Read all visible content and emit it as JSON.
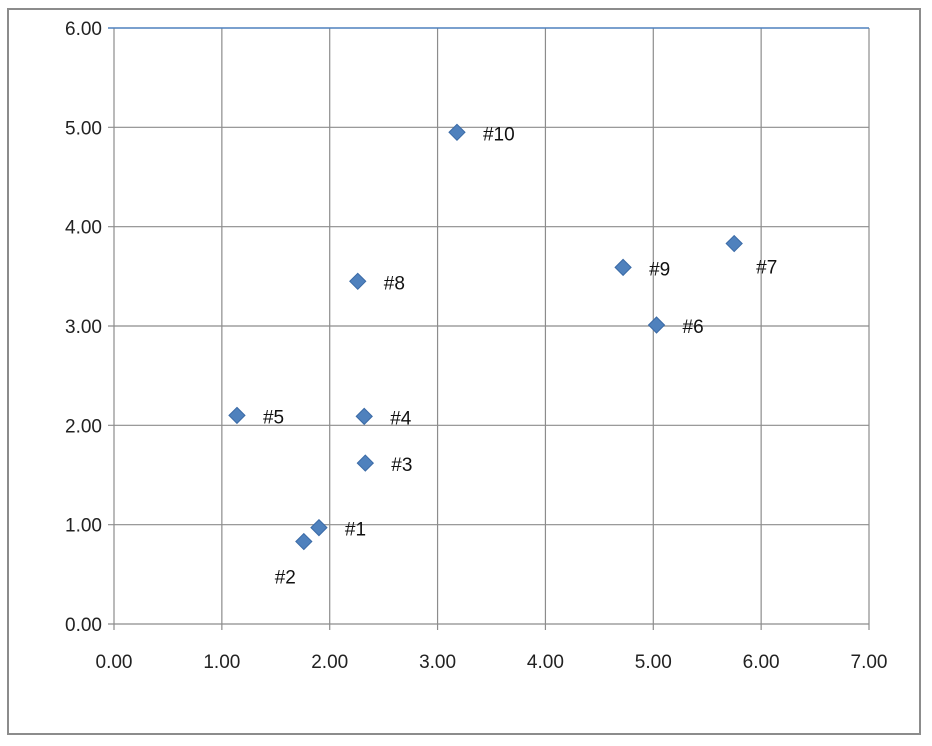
{
  "chart_data": {
    "type": "scatter",
    "title": "",
    "xlabel": "",
    "ylabel": "",
    "xlim": [
      0,
      7
    ],
    "ylim": [
      0,
      6
    ],
    "x_ticks": [
      "0.00",
      "1.00",
      "2.00",
      "3.00",
      "4.00",
      "5.00",
      "6.00",
      "7.00"
    ],
    "y_ticks": [
      "0.00",
      "1.00",
      "2.00",
      "3.00",
      "4.00",
      "5.00",
      "6.00"
    ],
    "grid": true,
    "legend": "none",
    "marker": "diamond",
    "colors": {
      "marker": "#4f81bd",
      "marker_edge": "#3a6aa6",
      "gridline": "#8c8c8c",
      "top_border": "#4f81bd"
    },
    "points": [
      {
        "label": "#1",
        "x": 1.9,
        "y": 0.97,
        "label_pos": "right"
      },
      {
        "label": "#2",
        "x": 1.76,
        "y": 0.83,
        "label_pos": "below-left"
      },
      {
        "label": "#3",
        "x": 2.33,
        "y": 1.62,
        "label_pos": "right"
      },
      {
        "label": "#4",
        "x": 2.32,
        "y": 2.09,
        "label_pos": "right"
      },
      {
        "label": "#5",
        "x": 1.14,
        "y": 2.1,
        "label_pos": "right"
      },
      {
        "label": "#6",
        "x": 5.03,
        "y": 3.01,
        "label_pos": "right"
      },
      {
        "label": "#7",
        "x": 5.75,
        "y": 3.83,
        "label_pos": "below-right"
      },
      {
        "label": "#8",
        "x": 2.26,
        "y": 3.45,
        "label_pos": "right"
      },
      {
        "label": "#9",
        "x": 4.72,
        "y": 3.59,
        "label_pos": "right"
      },
      {
        "label": "#10",
        "x": 3.18,
        "y": 4.95,
        "label_pos": "right"
      }
    ]
  }
}
